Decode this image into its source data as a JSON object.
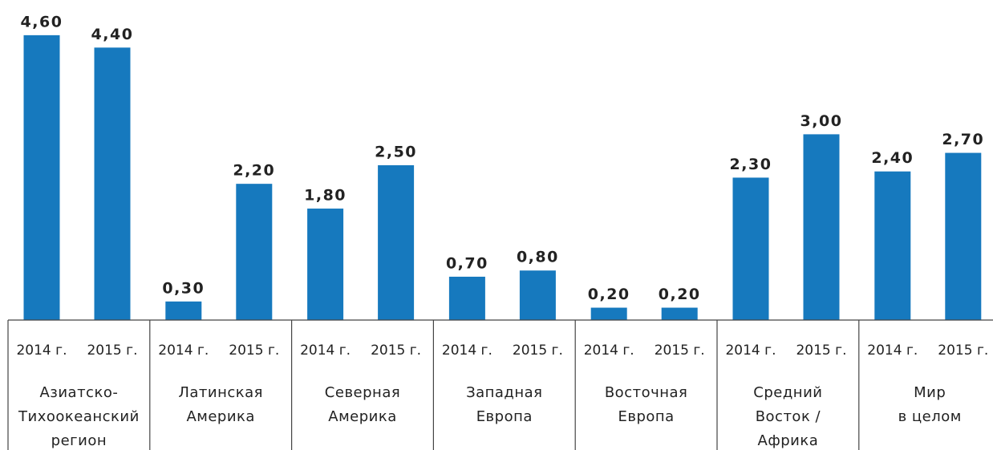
{
  "chart_data": {
    "type": "bar",
    "color": "#1679be",
    "groups": [
      {
        "name": [
          "Азиатско-",
          "Тихоокеанский",
          "регион"
        ],
        "periods": [
          "2014 г.",
          "2015 г."
        ],
        "values": [
          4.6,
          4.4
        ],
        "value_labels": [
          "4,60",
          "4,40"
        ]
      },
      {
        "name": [
          "Латинская",
          "Америка"
        ],
        "periods": [
          "2014 г.",
          "2015 г."
        ],
        "values": [
          0.3,
          2.2
        ],
        "value_labels": [
          "0,30",
          "2,20"
        ]
      },
      {
        "name": [
          "Северная",
          "Америка"
        ],
        "periods": [
          "2014 г.",
          "2015 г."
        ],
        "values": [
          1.8,
          2.5
        ],
        "value_labels": [
          "1,80",
          "2,50"
        ]
      },
      {
        "name": [
          "Западная",
          "Европа"
        ],
        "periods": [
          "2014 г.",
          "2015 г."
        ],
        "values": [
          0.7,
          0.8
        ],
        "value_labels": [
          "0,70",
          "0,80"
        ]
      },
      {
        "name": [
          "Восточная",
          "Европа"
        ],
        "periods": [
          "2014 г.",
          "2015 г."
        ],
        "values": [
          0.2,
          0.2
        ],
        "value_labels": [
          "0,20",
          "0,20"
        ]
      },
      {
        "name": [
          "Средний",
          "Восток /",
          "Африка"
        ],
        "periods": [
          "2014 г.",
          "2015 г."
        ],
        "values": [
          2.3,
          3.0
        ],
        "value_labels": [
          "2,30",
          "3,00"
        ]
      },
      {
        "name": [
          "Мир",
          "в целом"
        ],
        "periods": [
          "2014 г.",
          "2015 г."
        ],
        "values": [
          2.4,
          2.7
        ],
        "value_labels": [
          "2,40",
          "2,70"
        ]
      }
    ]
  }
}
